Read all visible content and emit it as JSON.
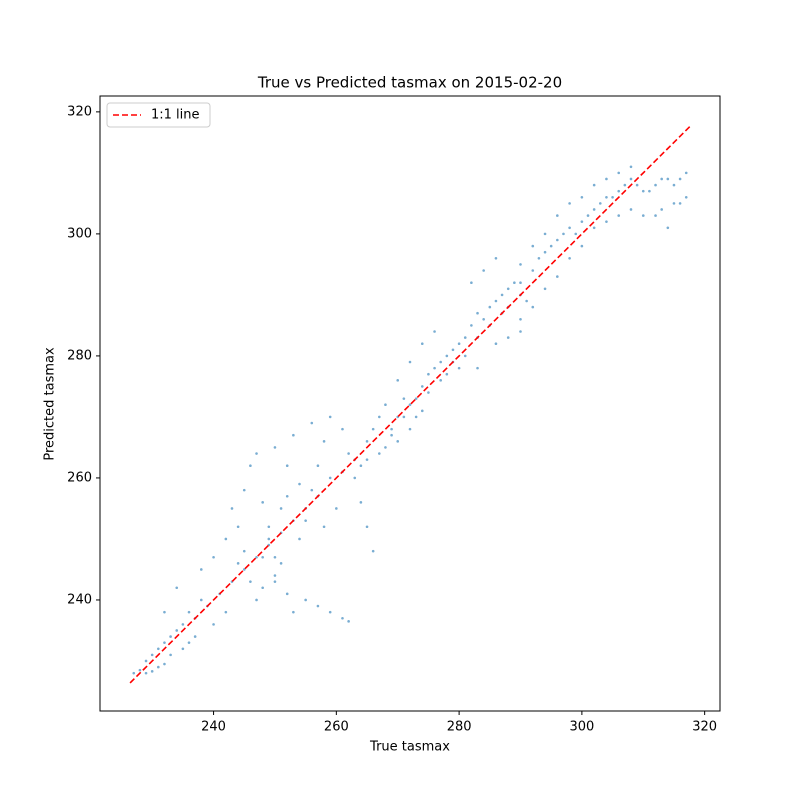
{
  "chart_data": {
    "type": "scatter",
    "title": "True vs Predicted tasmax on 2015-02-20",
    "x_label": "True tasmax",
    "y_label": "Predicted tasmax",
    "xlim": [
      221.5,
      322.5
    ],
    "ylim": [
      221.8,
      322.6
    ],
    "xticks": [
      240,
      260,
      280,
      300,
      320
    ],
    "yticks": [
      240,
      260,
      280,
      300,
      320
    ],
    "legend": "upper left",
    "series": [
      {
        "color": "#1f77b4",
        "x": [
          227,
          228,
          229,
          230,
          231,
          232,
          229,
          230,
          231,
          232,
          233,
          234,
          233,
          235,
          236,
          237,
          235,
          236,
          238,
          232,
          234,
          240,
          242,
          238,
          240,
          242,
          243,
          244,
          245,
          246,
          247,
          248,
          249,
          250,
          246,
          247,
          248,
          250,
          251,
          252,
          253,
          255,
          257,
          259,
          261,
          262,
          254,
          255,
          256,
          257,
          258,
          252,
          250,
          253,
          256,
          259,
          261,
          262,
          263,
          264,
          265,
          266,
          260,
          258,
          244,
          245,
          249,
          251,
          252,
          254,
          248,
          250,
          264,
          265,
          266,
          267,
          268,
          269,
          270,
          271,
          272,
          273,
          274,
          275,
          276,
          277,
          278,
          279,
          280,
          270,
          272,
          274,
          268,
          270,
          272,
          274,
          276,
          278,
          280,
          281,
          282,
          283,
          284,
          285,
          286,
          287,
          288,
          289,
          290,
          282,
          284,
          286,
          283,
          286,
          288,
          290,
          291,
          292,
          293,
          294,
          295,
          296,
          297,
          298,
          299,
          300,
          301,
          302,
          303,
          304,
          305,
          306,
          307,
          308,
          309,
          310,
          311,
          312,
          313,
          314,
          315,
          316,
          317,
          317,
          316,
          315,
          313,
          310,
          308,
          306,
          304,
          302,
          300,
          298,
          296,
          294,
          292,
          290,
          288,
          290,
          292,
          294,
          296,
          298,
          300,
          302,
          304,
          306,
          308,
          312,
          314,
          290,
          287,
          285,
          283,
          281,
          279,
          277,
          275,
          273,
          271,
          269,
          267,
          265,
          263,
          261,
          259,
          257,
          255,
          253,
          251,
          249,
          247,
          245,
          243,
          241,
          239,
          237
        ],
        "values": [
          228,
          228.5,
          228,
          228.3,
          229,
          229.5,
          230,
          231,
          232,
          233,
          234,
          235,
          231,
          232,
          233,
          234,
          236,
          238,
          240,
          238,
          242,
          236,
          238,
          245,
          247,
          250,
          255,
          252,
          258,
          262,
          264,
          256,
          250,
          247,
          243,
          240,
          242,
          244,
          246,
          241,
          238,
          240,
          239,
          238,
          237,
          236.5,
          250,
          253,
          258,
          262,
          266,
          262,
          265,
          267,
          269,
          270,
          268,
          264,
          260,
          256,
          252,
          248,
          255,
          252,
          246,
          248,
          252,
          255,
          257,
          259,
          247,
          243,
          262,
          266,
          268,
          270,
          265,
          268,
          270,
          273,
          272,
          270,
          275,
          277,
          278,
          276,
          280,
          281,
          282,
          266,
          268,
          271,
          272,
          276,
          279,
          282,
          284,
          277,
          278,
          283,
          285,
          287,
          286,
          288,
          289,
          290,
          291,
          292,
          292,
          292,
          294,
          296,
          278,
          282,
          283,
          286,
          289,
          294,
          296,
          297,
          298,
          299,
          300,
          301,
          300,
          302,
          303,
          304,
          305,
          306,
          306,
          307,
          308,
          309,
          308,
          307,
          307,
          308,
          309,
          309,
          308,
          309,
          310,
          306,
          305,
          305,
          304,
          303,
          304,
          303,
          302,
          301,
          298,
          296,
          293,
          291,
          288,
          284,
          288,
          295,
          298,
          300,
          303,
          305,
          306,
          308,
          309,
          310,
          311,
          303,
          301,
          290,
          287,
          285,
          283,
          280,
          279,
          279,
          274,
          273,
          270,
          267,
          264,
          263,
          263,
          261,
          260,
          257,
          255,
          253,
          251,
          249,
          247,
          245,
          243,
          241,
          239,
          237
        ]
      },
      {
        "name": "1:1 line",
        "type": "line",
        "color": "#ff0000",
        "x": [
          226.4,
          317.6
        ],
        "values": [
          226.4,
          317.6
        ]
      }
    ]
  }
}
